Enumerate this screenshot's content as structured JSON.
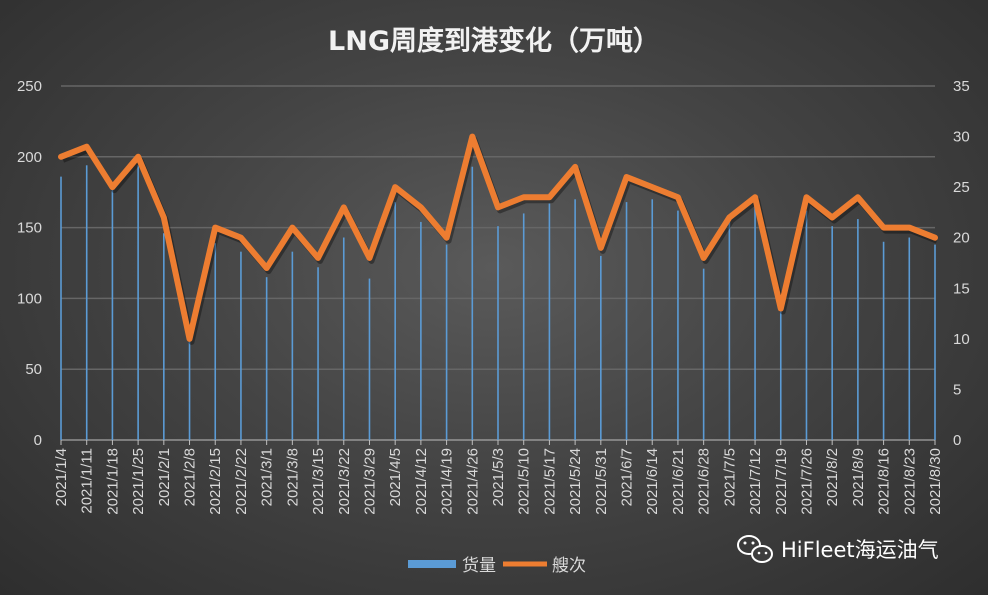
{
  "chart_data": {
    "type": "bar+line",
    "title": "LNG周度到港变化（万吨）",
    "categories": [
      "2021/1/4",
      "2021/1/11",
      "2021/1/18",
      "2021/1/25",
      "2021/2/1",
      "2021/2/8",
      "2021/2/15",
      "2021/2/22",
      "2021/3/1",
      "2021/3/8",
      "2021/3/15",
      "2021/3/22",
      "2021/3/29",
      "2021/4/5",
      "2021/4/12",
      "2021/4/19",
      "2021/4/26",
      "2021/5/3",
      "2021/5/10",
      "2021/5/17",
      "2021/5/24",
      "2021/5/31",
      "2021/6/7",
      "2021/6/14",
      "2021/6/21",
      "2021/6/28",
      "2021/7/5",
      "2021/7/12",
      "2021/7/19",
      "2021/7/26",
      "2021/8/2",
      "2021/8/9",
      "2021/8/16",
      "2021/8/23",
      "2021/8/30"
    ],
    "series": [
      {
        "name": "货量",
        "type": "bar",
        "axis": "left",
        "color": "#5b9bd5",
        "values": [
          186,
          194,
          177,
          194,
          146,
          70,
          139,
          133,
          115,
          133,
          122,
          143,
          114,
          168,
          154,
          138,
          193,
          151,
          160,
          167,
          170,
          130,
          168,
          170,
          162,
          121,
          154,
          165,
          91,
          162,
          151,
          156,
          140,
          143,
          138
        ]
      },
      {
        "name": "艘次",
        "type": "line",
        "axis": "right",
        "color": "#ed7d31",
        "values": [
          28,
          29,
          25,
          28,
          22,
          10,
          21,
          20,
          17,
          21,
          18,
          23,
          18,
          25,
          23,
          20,
          30,
          23,
          24,
          24,
          27,
          19,
          26,
          25,
          24,
          18,
          22,
          24,
          13,
          24,
          22,
          24,
          21,
          21,
          20
        ]
      }
    ],
    "y_left": {
      "range": [
        0,
        250
      ],
      "ticks": [
        0,
        50,
        100,
        150,
        200,
        250
      ]
    },
    "y_right": {
      "range": [
        0,
        35
      ],
      "ticks": [
        0,
        5,
        10,
        15,
        20,
        25,
        30,
        35
      ]
    },
    "grid": true,
    "legend_position": "bottom"
  },
  "watermark": {
    "text": "HiFleet海运油气",
    "icon": "wechat-icon"
  }
}
